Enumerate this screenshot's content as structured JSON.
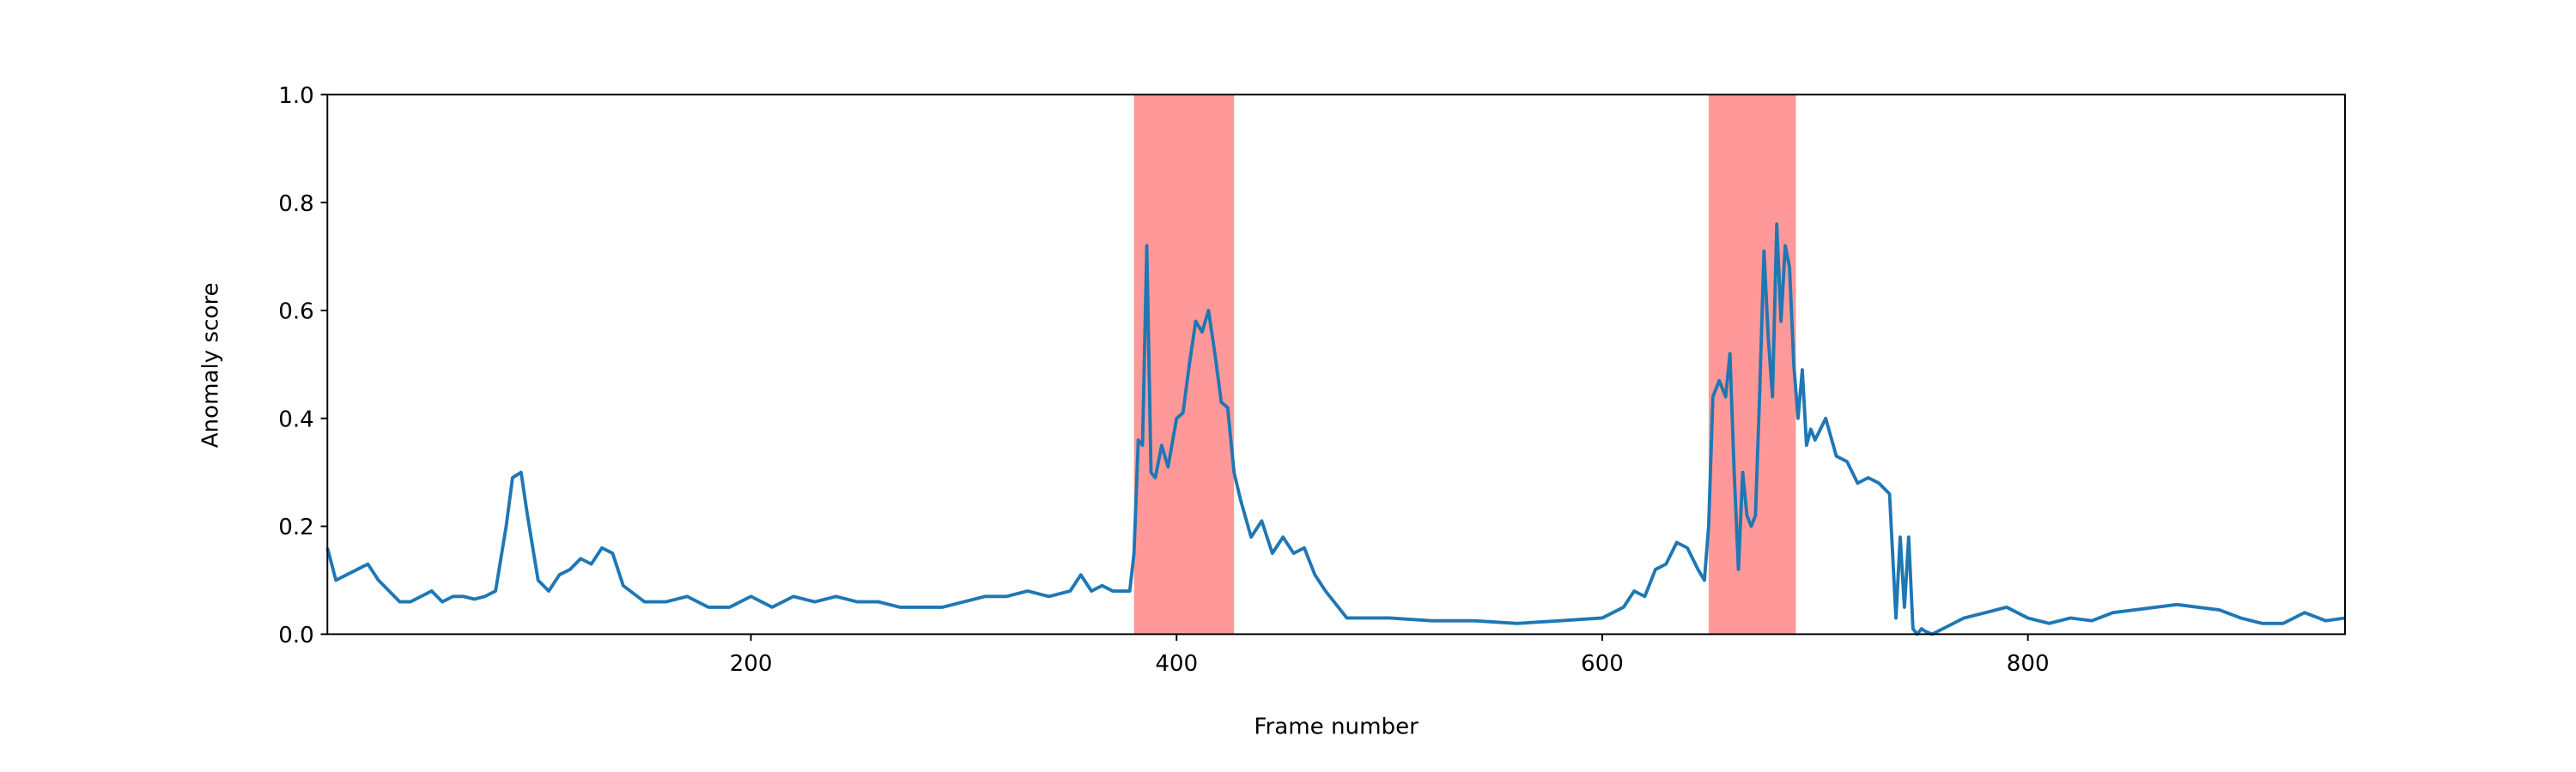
{
  "chart_data": {
    "type": "line",
    "xlabel": "Frame number",
    "ylabel": "Anomaly score",
    "xlim": [
      1,
      949
    ],
    "ylim": [
      0,
      1
    ],
    "xticks": [
      200,
      400,
      600,
      800
    ],
    "yticks": [
      {
        "value": 0,
        "label": "0.0"
      },
      0.2,
      0.4,
      0.6,
      0.8,
      {
        "value": 1,
        "label": "1.0"
      }
    ],
    "shaded_regions": [
      [
        380,
        427
      ],
      [
        650,
        691
      ]
    ],
    "shade_color": "#ff9999",
    "x": [
      1,
      5,
      10,
      15,
      20,
      25,
      30,
      35,
      40,
      45,
      50,
      55,
      60,
      65,
      70,
      75,
      80,
      85,
      88,
      92,
      95,
      100,
      105,
      110,
      115,
      120,
      125,
      130,
      135,
      140,
      150,
      160,
      170,
      180,
      190,
      200,
      210,
      220,
      230,
      240,
      250,
      260,
      270,
      280,
      290,
      300,
      310,
      320,
      330,
      340,
      350,
      355,
      360,
      365,
      370,
      375,
      378,
      380,
      382,
      384,
      386,
      388,
      390,
      393,
      396,
      400,
      403,
      406,
      409,
      412,
      415,
      418,
      421,
      424,
      427,
      430,
      435,
      440,
      445,
      450,
      455,
      460,
      465,
      470,
      480,
      500,
      520,
      540,
      560,
      580,
      600,
      610,
      615,
      620,
      625,
      630,
      635,
      640,
      645,
      648,
      650,
      652,
      655,
      658,
      660,
      662,
      664,
      666,
      668,
      670,
      672,
      674,
      676,
      678,
      680,
      682,
      684,
      686,
      688,
      690,
      692,
      694,
      696,
      698,
      700,
      705,
      710,
      715,
      720,
      725,
      730,
      735,
      738,
      740,
      742,
      744,
      746,
      748,
      750,
      752,
      755,
      760,
      770,
      780,
      790,
      800,
      810,
      820,
      830,
      840,
      850,
      860,
      870,
      880,
      890,
      900,
      910,
      920,
      930,
      940,
      949
    ],
    "series": [
      {
        "color": "#1f77b4",
        "values": [
          0.16,
          0.1,
          0.11,
          0.12,
          0.13,
          0.1,
          0.08,
          0.06,
          0.06,
          0.07,
          0.08,
          0.06,
          0.07,
          0.07,
          0.065,
          0.07,
          0.08,
          0.2,
          0.29,
          0.3,
          0.22,
          0.1,
          0.08,
          0.11,
          0.12,
          0.14,
          0.13,
          0.16,
          0.15,
          0.09,
          0.06,
          0.06,
          0.07,
          0.05,
          0.05,
          0.07,
          0.05,
          0.07,
          0.06,
          0.07,
          0.06,
          0.06,
          0.05,
          0.05,
          0.05,
          0.06,
          0.07,
          0.07,
          0.08,
          0.07,
          0.08,
          0.11,
          0.08,
          0.09,
          0.08,
          0.08,
          0.08,
          0.15,
          0.36,
          0.35,
          0.72,
          0.3,
          0.29,
          0.35,
          0.31,
          0.4,
          0.41,
          0.5,
          0.58,
          0.56,
          0.6,
          0.52,
          0.43,
          0.42,
          0.3,
          0.25,
          0.18,
          0.21,
          0.15,
          0.18,
          0.15,
          0.16,
          0.11,
          0.08,
          0.03,
          0.03,
          0.025,
          0.025,
          0.02,
          0.025,
          0.03,
          0.05,
          0.08,
          0.07,
          0.12,
          0.13,
          0.17,
          0.16,
          0.12,
          0.1,
          0.2,
          0.44,
          0.47,
          0.44,
          0.52,
          0.3,
          0.12,
          0.3,
          0.22,
          0.2,
          0.22,
          0.45,
          0.71,
          0.55,
          0.44,
          0.76,
          0.58,
          0.72,
          0.68,
          0.5,
          0.4,
          0.49,
          0.35,
          0.38,
          0.36,
          0.4,
          0.33,
          0.32,
          0.28,
          0.29,
          0.28,
          0.26,
          0.03,
          0.18,
          0.05,
          0.18,
          0.01,
          0.0,
          0.01,
          0.005,
          0.0,
          0.01,
          0.03,
          0.04,
          0.05,
          0.03,
          0.02,
          0.03,
          0.025,
          0.04,
          0.045,
          0.05,
          0.055,
          0.05,
          0.045,
          0.03,
          0.02,
          0.02,
          0.04,
          0.025,
          0.03
        ]
      }
    ]
  }
}
